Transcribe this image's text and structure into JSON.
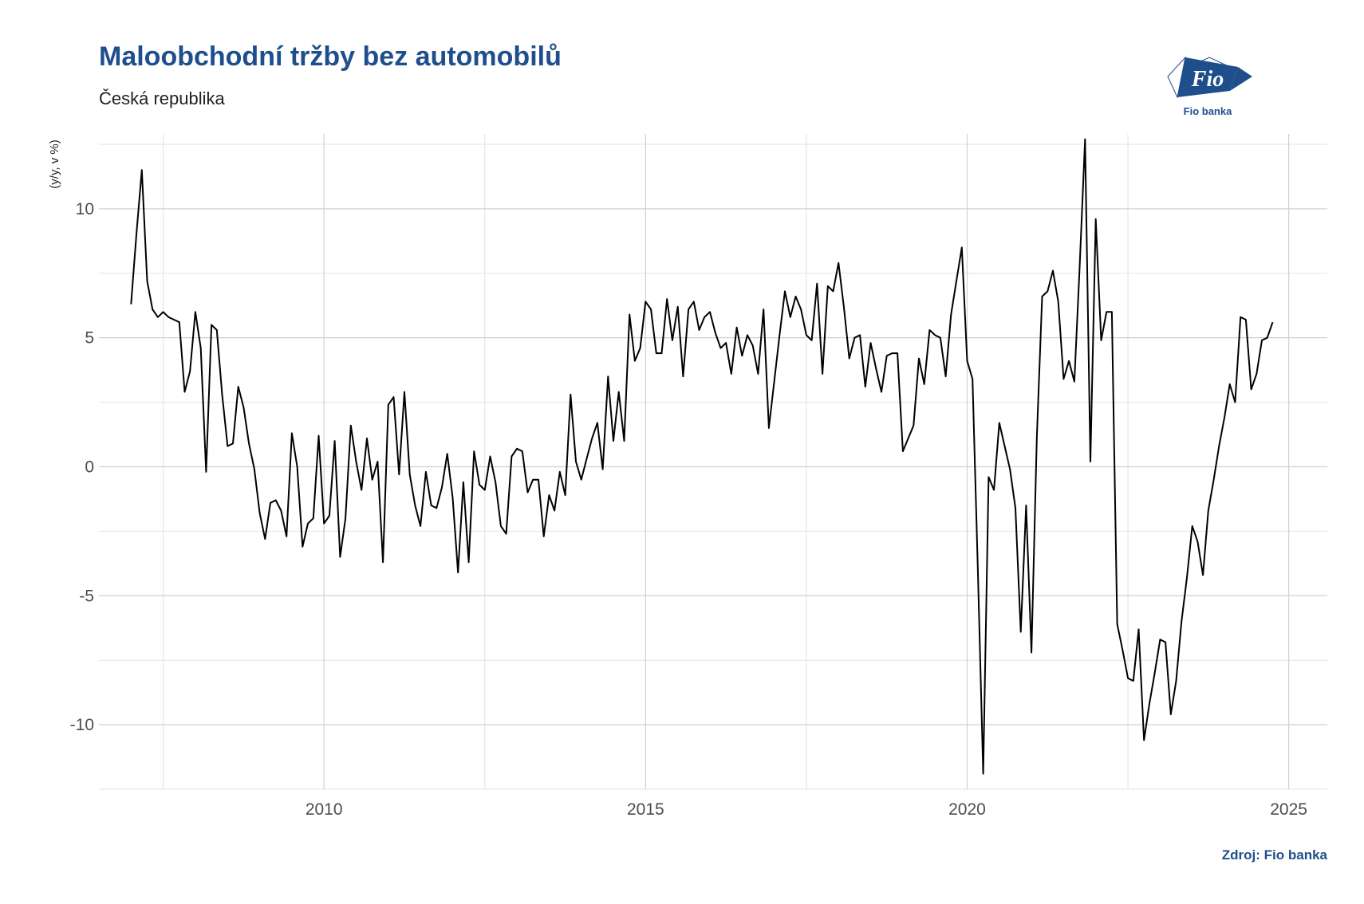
{
  "header": {
    "title": "Maloobchodní tržby bez automobilů",
    "subtitle": "Česká republika"
  },
  "logo": {
    "text": "Fio",
    "caption": "Fio banka",
    "color": "#1f4e8c"
  },
  "source": "Zdroj: Fio banka",
  "chart_data": {
    "type": "line",
    "title": "Maloobchodní tržby bez automobilů",
    "subtitle": "Česká republika",
    "xlabel": "",
    "ylabel": "(y/y, v %)",
    "xlim": [
      2006.5,
      2025.6
    ],
    "ylim": [
      -12.5,
      12.9
    ],
    "x_ticks": [
      2010,
      2015,
      2020,
      2025
    ],
    "y_ticks": [
      -10,
      -5,
      0,
      5,
      10
    ],
    "x_tick_labels": [
      "2010",
      "2015",
      "2020",
      "2025"
    ],
    "y_tick_labels": [
      "-10",
      "-5",
      "0",
      "5",
      "10"
    ],
    "grid": true,
    "line_color": "#000000",
    "series": [
      {
        "start": "2007-01",
        "frequency": "monthly",
        "values": [
          6.3,
          9.0,
          11.5,
          7.2,
          6.1,
          5.8,
          6.0,
          5.8,
          5.7,
          5.6,
          2.9,
          3.7,
          6.0,
          4.6,
          -0.2,
          5.5,
          5.3,
          2.8,
          0.8,
          0.9,
          3.1,
          2.3,
          0.9,
          -0.1,
          -1.8,
          -2.8,
          -1.4,
          -1.3,
          -1.7,
          -2.7,
          1.3,
          0.0,
          -3.1,
          -2.2,
          -2.0,
          1.2,
          -2.2,
          -1.9,
          1.0,
          -3.5,
          -2.0,
          1.6,
          0.2,
          -0.9,
          1.1,
          -0.5,
          0.2,
          -3.7,
          2.4,
          2.7,
          -0.3,
          2.9,
          -0.3,
          -1.5,
          -2.3,
          -0.2,
          -1.5,
          -1.6,
          -0.8,
          0.5,
          -1.2,
          -4.1,
          -0.6,
          -3.7,
          0.6,
          -0.7,
          -0.9,
          0.4,
          -0.6,
          -2.3,
          -2.6,
          0.4,
          0.7,
          0.6,
          -1.0,
          -0.5,
          -0.5,
          -2.7,
          -1.1,
          -1.7,
          -0.2,
          -1.1,
          2.8,
          0.2,
          -0.5,
          0.3,
          1.1,
          1.7,
          -0.1,
          3.5,
          1.0,
          2.9,
          1.0,
          5.9,
          4.1,
          4.6,
          6.4,
          6.1,
          4.4,
          4.4,
          6.5,
          4.9,
          6.2,
          3.5,
          6.1,
          6.4,
          5.3,
          5.8,
          6.0,
          5.2,
          4.6,
          4.8,
          3.6,
          5.4,
          4.3,
          5.1,
          4.7,
          3.6,
          6.1,
          1.5,
          3.3,
          5.1,
          6.8,
          5.8,
          6.6,
          6.1,
          5.1,
          4.9,
          7.1,
          3.6,
          7.0,
          6.8,
          7.9,
          6.2,
          4.2,
          5.0,
          5.1,
          3.1,
          4.8,
          3.8,
          2.9,
          4.3,
          4.4,
          4.4,
          0.6,
          1.1,
          1.6,
          4.2,
          3.2,
          5.3,
          5.1,
          5.0,
          3.5,
          5.9,
          7.2,
          8.5,
          4.1,
          3.4,
          -4.0,
          -11.9,
          -0.4,
          -0.9,
          1.7,
          0.8,
          -0.1,
          -1.6,
          -6.4,
          -1.5,
          -7.2,
          1.1,
          6.6,
          6.8,
          7.6,
          6.4,
          3.4,
          4.1,
          3.3,
          7.8,
          12.7,
          0.2,
          9.6,
          4.9,
          6.0,
          6.0,
          -6.1,
          -7.1,
          -8.2,
          -8.3,
          -6.3,
          -10.6,
          -9.2,
          -8.0,
          -6.7,
          -6.8,
          -9.6,
          -8.3,
          -6.0,
          -4.3,
          -2.3,
          -2.9,
          -4.2,
          -1.7,
          -0.5,
          0.8,
          1.9,
          3.2,
          2.5,
          5.8,
          5.7,
          3.0,
          3.6,
          4.9,
          5.0,
          5.6
        ]
      }
    ]
  }
}
